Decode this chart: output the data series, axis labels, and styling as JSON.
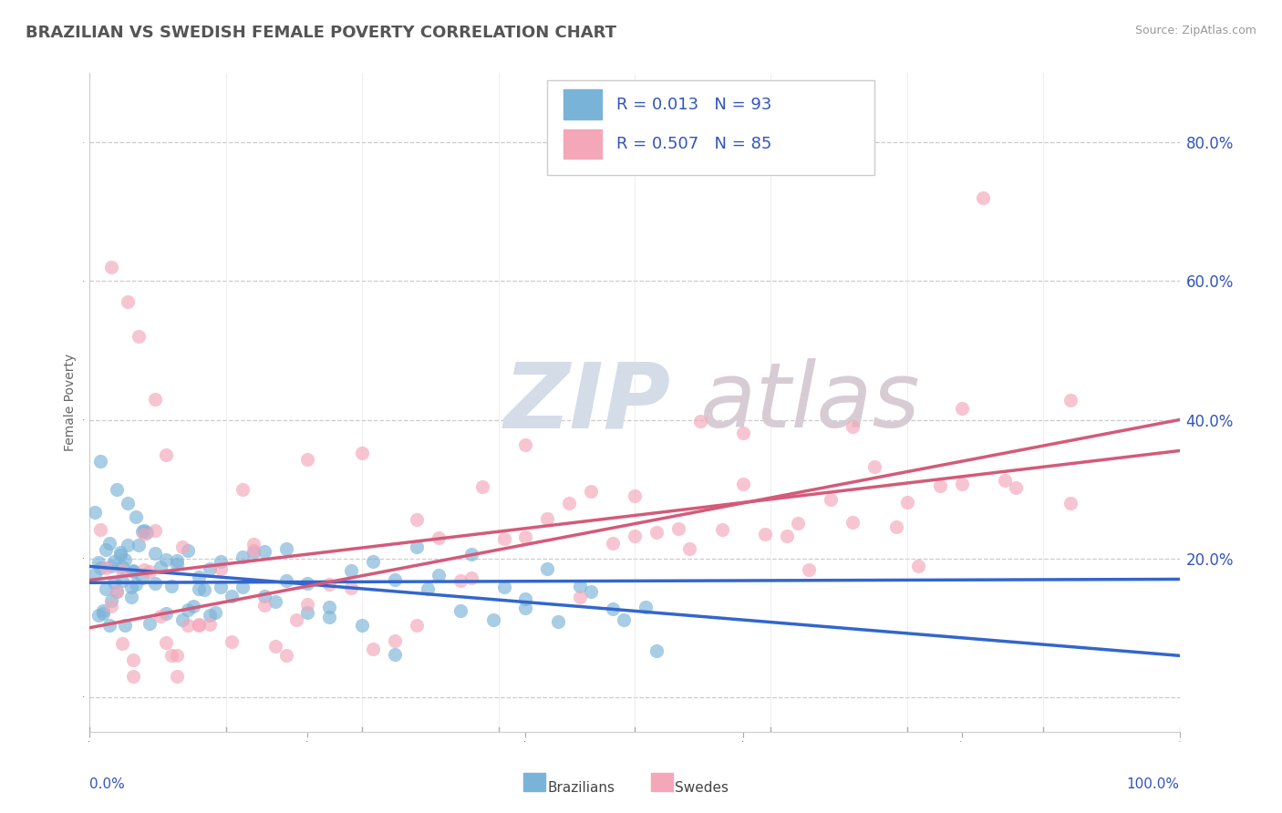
{
  "title": "BRAZILIAN VS SWEDISH FEMALE POVERTY CORRELATION CHART",
  "source": "Source: ZipAtlas.com",
  "ylabel": "Female Poverty",
  "y_tick_values": [
    0.0,
    0.2,
    0.4,
    0.6,
    0.8
  ],
  "y_tick_labels": [
    "",
    "20.0%",
    "40.0%",
    "60.0%",
    "80.0%"
  ],
  "x_range": [
    0.0,
    1.0
  ],
  "y_range": [
    -0.05,
    0.9
  ],
  "brazil_color": "#7ab3d8",
  "brazil_line_color": "#3366cc",
  "sweden_color": "#f4a7b9",
  "sweden_line_color": "#d45a7a",
  "brazil_R": 0.013,
  "brazil_N": 93,
  "sweden_R": 0.507,
  "sweden_N": 85,
  "legend_text_color": "#3355bb",
  "watermark_zip_color": "#d4dce8",
  "watermark_atlas_color": "#d8ccd4",
  "background_color": "#ffffff",
  "grid_color": "#cccccc",
  "title_color": "#555555",
  "seed": 12345
}
